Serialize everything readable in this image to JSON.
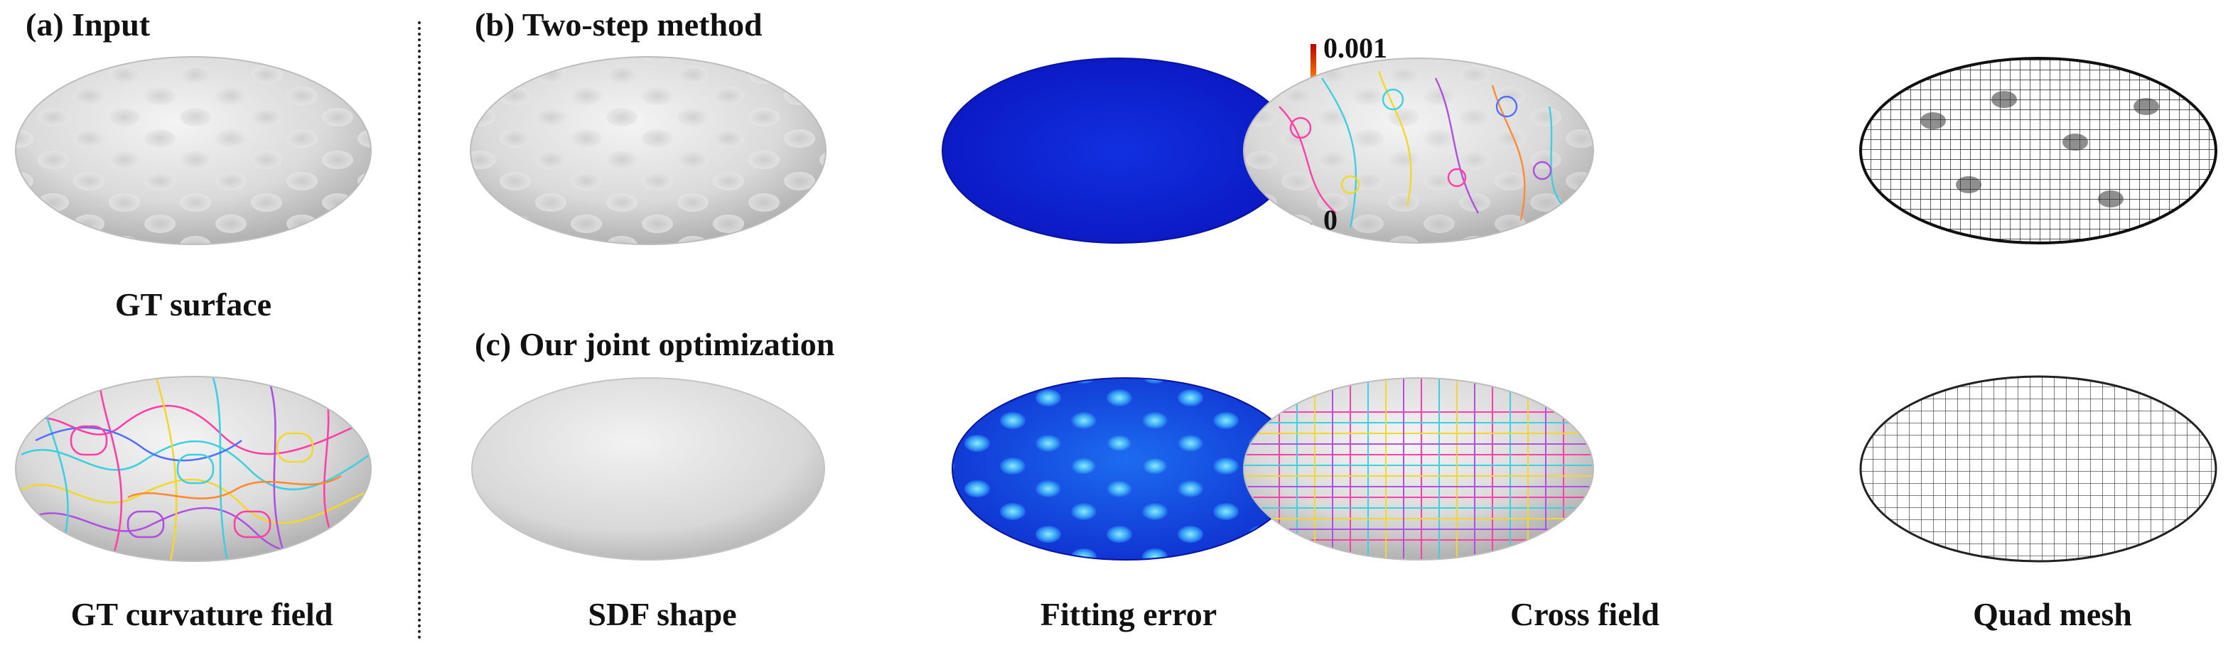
{
  "panels": {
    "a_title": "(a) Input",
    "b_title": "(b) Two-step method",
    "c_title": "(c) Our joint optimization"
  },
  "captions": {
    "gt_surface": "GT surface",
    "gt_curvature": "GT curvature field",
    "sdf_shape": "SDF shape",
    "fitting_error": "Fitting error",
    "cross_field": "Cross field",
    "quad_mesh": "Quad mesh"
  },
  "colorbar": {
    "max_label": "0.001",
    "min_label": "0"
  },
  "colors": {
    "error_low": "#0a18d8",
    "error_high": "#d40000",
    "surface": "#e2e2e2"
  }
}
